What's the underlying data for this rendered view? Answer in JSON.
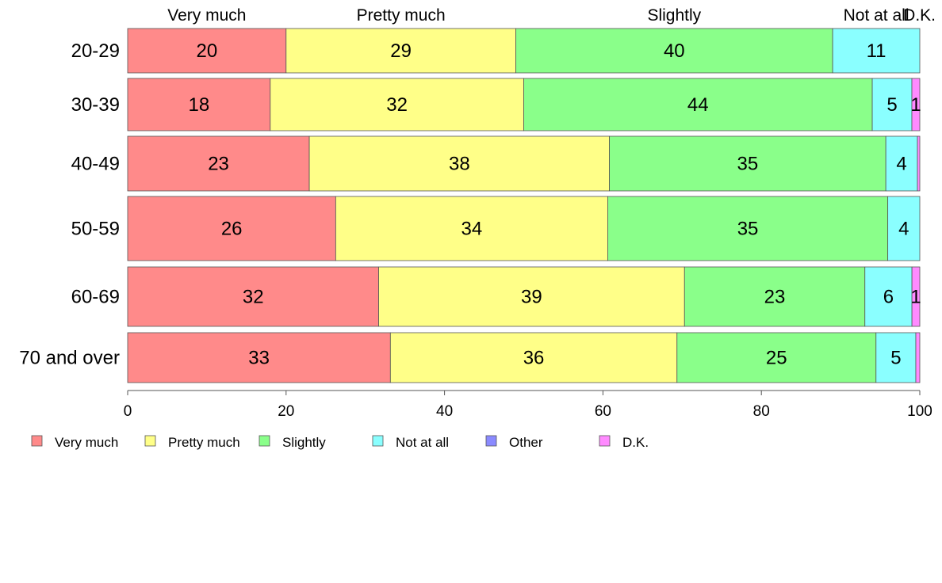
{
  "chart_data": {
    "type": "bar",
    "orientation": "horizontal",
    "stacked": true,
    "categories": [
      "20-29",
      "30-39",
      "40-49",
      "50-59",
      "60-69",
      "70 and over"
    ],
    "series": [
      {
        "name": "Very much",
        "color": "#FF8A8A",
        "values": [
          20,
          18,
          23,
          26,
          32,
          33
        ],
        "labels": [
          "20",
          "18",
          "23",
          "26",
          "32",
          "33"
        ]
      },
      {
        "name": "Pretty much",
        "color": "#FFFF88",
        "values": [
          29,
          32,
          38,
          34,
          39,
          36
        ],
        "labels": [
          "29",
          "32",
          "38",
          "34",
          "39",
          "36"
        ]
      },
      {
        "name": "Slightly",
        "color": "#8AFF8A",
        "values": [
          40,
          44,
          35,
          35,
          23,
          25
        ],
        "labels": [
          "40",
          "44",
          "35",
          "35",
          "23",
          "25"
        ]
      },
      {
        "name": "Not at all",
        "color": "#8AFFFF",
        "values": [
          11,
          5,
          4,
          4,
          6,
          5
        ],
        "labels": [
          "11",
          "5",
          "4",
          "4",
          "6",
          "5"
        ]
      },
      {
        "name": "Other",
        "color": "#8A8AFF",
        "values": [
          0,
          0,
          0,
          0,
          0,
          0
        ],
        "labels": [
          "",
          "",
          "",
          "",
          "",
          ""
        ]
      },
      {
        "name": "D.K.",
        "color": "#FF8AFF",
        "values": [
          0,
          1,
          0.3,
          0,
          1,
          0.5
        ],
        "labels": [
          "",
          "1",
          "",
          "",
          "1",
          ""
        ]
      }
    ],
    "top_labels": [
      "Very much",
      "Pretty much",
      "Slightly",
      "Not at all",
      "D.K."
    ],
    "top_label_series": [
      0,
      1,
      2,
      3,
      5
    ],
    "xlim": [
      0,
      100
    ],
    "xticks": [
      0,
      20,
      40,
      60,
      80,
      100
    ],
    "xlabel": "",
    "ylabel": "",
    "grid": false,
    "legend_position": "bottom"
  }
}
